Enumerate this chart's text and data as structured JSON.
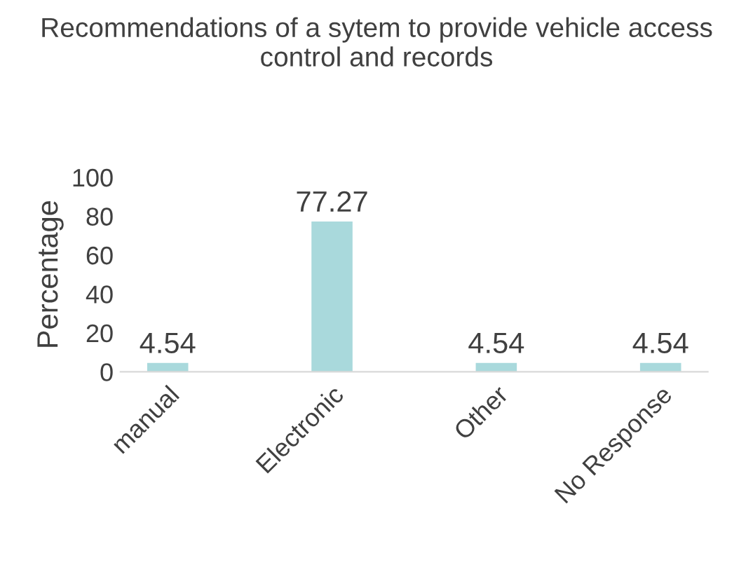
{
  "chart_data": {
    "type": "bar",
    "title": "Recommendations of a sytem to provide vehicle access control and records",
    "ylabel": "Percentage",
    "categories": [
      "manual",
      "Electronic",
      "Other",
      "No Response"
    ],
    "values": [
      4.54,
      77.27,
      4.54,
      4.54
    ],
    "color": "#a9d9dc",
    "ylim": [
      0,
      100
    ],
    "yticks": [
      0,
      20,
      40,
      60,
      80,
      100
    ],
    "grid": false,
    "data_labels": true
  }
}
